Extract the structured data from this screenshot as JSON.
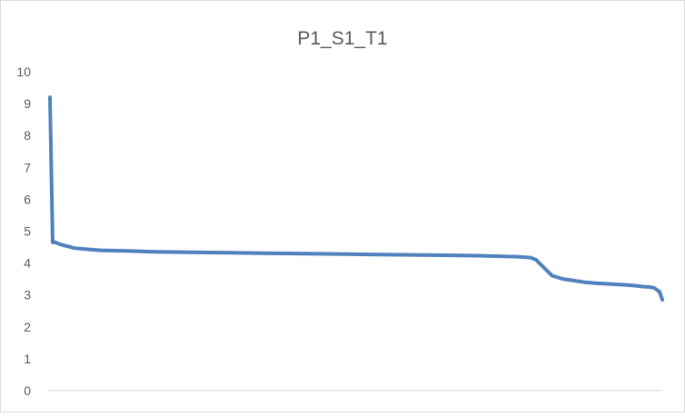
{
  "chart_data": {
    "type": "line",
    "title": "P1_S1_T1",
    "xlabel": "",
    "ylabel": "",
    "ylim": [
      0,
      10
    ],
    "y_ticks": [
      0,
      1,
      2,
      3,
      4,
      5,
      6,
      7,
      8,
      9,
      10
    ],
    "grid": false,
    "legend": "none",
    "series": [
      {
        "color": "#4f81bd",
        "x": [
          1,
          2,
          3,
          5,
          10,
          15,
          20,
          30,
          40,
          60,
          80,
          100,
          120,
          140,
          160,
          170,
          175,
          180,
          182,
          185,
          188,
          192,
          196,
          200,
          204,
          208,
          212,
          216,
          220,
          222,
          224,
          226,
          228,
          229
        ],
        "y": [
          9.2,
          4.65,
          4.65,
          4.58,
          4.47,
          4.43,
          4.4,
          4.38,
          4.35,
          4.33,
          4.31,
          4.29,
          4.27,
          4.25,
          4.23,
          4.21,
          4.2,
          4.17,
          4.1,
          3.85,
          3.6,
          3.5,
          3.45,
          3.4,
          3.37,
          3.35,
          3.33,
          3.31,
          3.28,
          3.26,
          3.25,
          3.22,
          3.1,
          2.85
        ]
      }
    ]
  }
}
